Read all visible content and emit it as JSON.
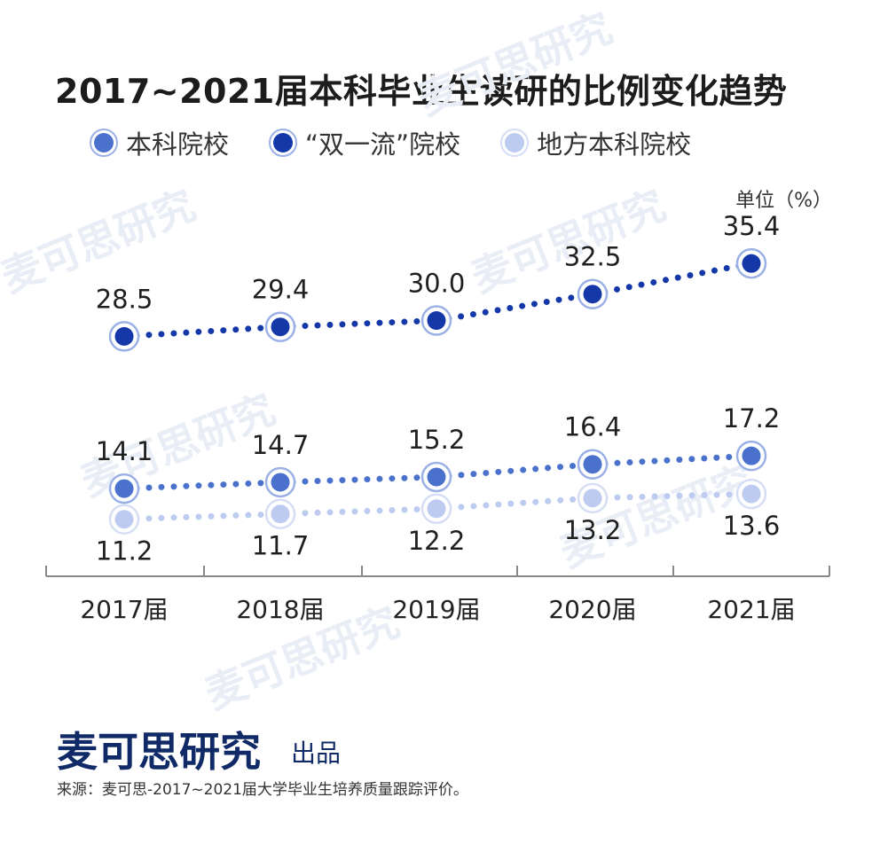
{
  "title": "2017~2021届本科毕业生读研的比例变化趋势",
  "unit_label": "单位（%）",
  "legend": [
    {
      "label": "本科院校",
      "icon": "medium-blue-dot-icon"
    },
    {
      "label": "“双一流”院校",
      "icon": "dark-blue-dot-icon"
    },
    {
      "label": "地方本科院校",
      "icon": "light-blue-dot-icon"
    }
  ],
  "chart_data": {
    "type": "line",
    "title": "2017~2021届本科毕业生读研的比例变化趋势",
    "xlabel": "",
    "ylabel": "单位（%）",
    "categories": [
      "2017届",
      "2018届",
      "2019届",
      "2020届",
      "2021届"
    ],
    "ylim": [
      10,
      36
    ],
    "grid": false,
    "legend_position": "top",
    "series": [
      {
        "name": "本科院校",
        "values": [
          14.1,
          14.7,
          15.2,
          16.4,
          17.2
        ],
        "color": "#4a72cc",
        "labels": [
          "14.1",
          "14.7",
          "15.2",
          "16.4",
          "17.2"
        ],
        "label_position": "above"
      },
      {
        "name": "“双一流”院校",
        "values": [
          28.5,
          29.4,
          30.0,
          32.5,
          35.4
        ],
        "color": "#1438a8",
        "labels": [
          "28.5",
          "29.4",
          "30.0",
          "32.5",
          "35.4"
        ],
        "label_position": "above"
      },
      {
        "name": "地方本科院校",
        "values": [
          11.2,
          11.7,
          12.2,
          13.2,
          13.6
        ],
        "color": "#bccbef",
        "labels": [
          "11.2",
          "11.7",
          "12.2",
          "13.2",
          "13.6"
        ],
        "label_position": "below"
      }
    ]
  },
  "footer": {
    "brand": "麦可思研究",
    "produced": "出品",
    "source": "来源：麦可思-2017~2021届大学毕业生培养质量跟踪评价。"
  },
  "watermark": "麦可思研究",
  "colors": {
    "axis": "#888888",
    "brand": "#0f2a66"
  }
}
